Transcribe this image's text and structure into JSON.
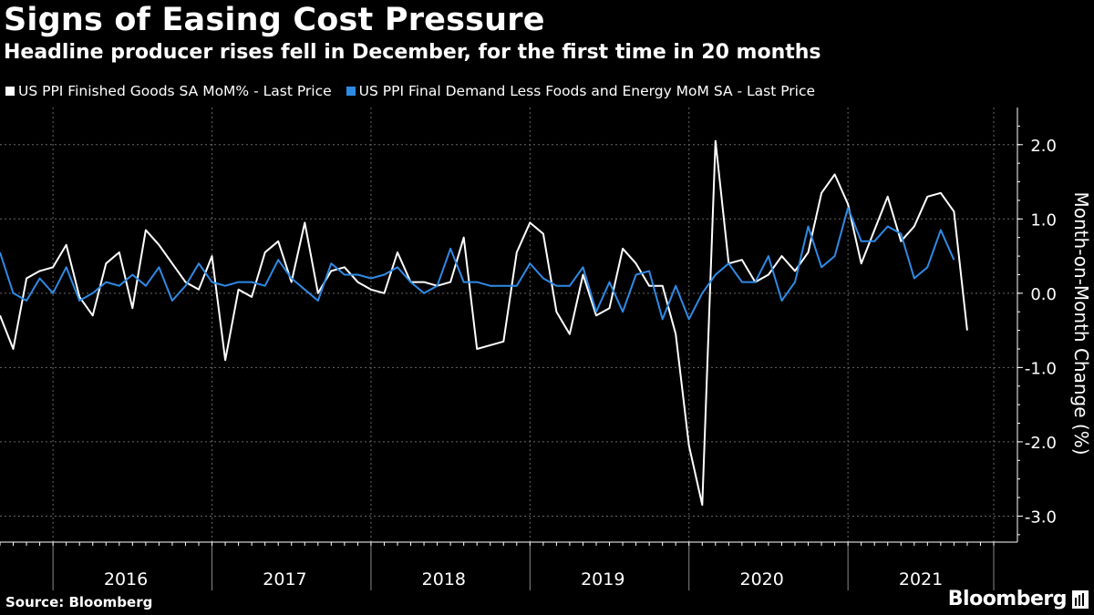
{
  "colors": {
    "background": "#000000",
    "series_white": "#ffffff",
    "series_blue": "#2f8ae5",
    "grid": "#666666"
  },
  "source_label": "Source: Bloomberg",
  "brand": "Bloomberg",
  "chart_data": {
    "type": "line",
    "title": "Signs of Easing Cost Pressure",
    "subtitle": "Headline producer rises fell in December, for the first time in 20 months",
    "ylabel": "Month-on-Month Change (%)",
    "xlabel": "",
    "ylim": [
      -3.35,
      2.5
    ],
    "yticks": [
      2.0,
      1.0,
      0.0,
      -1.0,
      -2.0,
      -3.0
    ],
    "ytick_labels": [
      "2.0",
      "1.0",
      "0.0",
      "-1.0",
      "-2.0",
      "-3.0"
    ],
    "y_axis_side": "right",
    "grid": true,
    "legend": "top-left",
    "x_start": "2015-09",
    "x_end": "2021-12",
    "year_labels": [
      "2016",
      "2017",
      "2018",
      "2019",
      "2020",
      "2021"
    ],
    "series": [
      {
        "name": "US PPI Finished Goods SA MoM% - Last Price",
        "color": "#ffffff",
        "values": [
          -0.3,
          -0.75,
          0.2,
          0.3,
          0.35,
          0.65,
          -0.05,
          -0.3,
          0.4,
          0.55,
          -0.2,
          0.85,
          0.65,
          0.4,
          0.15,
          0.05,
          0.5,
          -0.9,
          0.05,
          -0.05,
          0.55,
          0.7,
          0.15,
          0.95,
          0.0,
          0.3,
          0.35,
          0.15,
          0.05,
          0.0,
          0.55,
          0.15,
          0.15,
          0.1,
          0.15,
          0.75,
          -0.75,
          -0.7,
          -0.65,
          0.55,
          0.95,
          0.8,
          -0.25,
          -0.55,
          0.25,
          -0.3,
          -0.2,
          0.6,
          0.4,
          0.1,
          0.1,
          -0.55,
          -2.05,
          -2.85,
          2.05,
          0.4,
          0.45,
          0.15,
          0.25,
          0.5,
          0.3,
          0.55,
          1.35,
          1.6,
          1.2,
          0.4,
          0.85,
          1.3,
          0.7,
          0.9,
          1.3,
          1.35,
          1.1,
          -0.5
        ]
      },
      {
        "name": "US PPI Final Demand Less Foods and Energy MoM SA - Last Price",
        "color": "#2f8ae5",
        "values": [
          0.55,
          0.0,
          -0.1,
          0.2,
          0.0,
          0.35,
          -0.1,
          0.0,
          0.15,
          0.1,
          0.25,
          0.1,
          0.35,
          -0.1,
          0.1,
          0.4,
          0.15,
          0.1,
          0.15,
          0.15,
          0.1,
          0.45,
          0.2,
          0.05,
          -0.1,
          0.4,
          0.25,
          0.25,
          0.2,
          0.25,
          0.35,
          0.15,
          0.0,
          0.1,
          0.6,
          0.15,
          0.15,
          0.1,
          0.1,
          0.1,
          0.4,
          0.2,
          0.1,
          0.1,
          0.35,
          -0.25,
          0.15,
          -0.25,
          0.25,
          0.3,
          -0.35,
          0.1,
          -0.35,
          0.0,
          0.25,
          0.4,
          0.15,
          0.15,
          0.5,
          -0.1,
          0.15,
          0.9,
          0.35,
          0.5,
          1.15,
          0.7,
          0.7,
          0.9,
          0.8,
          0.2,
          0.35,
          0.85,
          0.45
        ]
      }
    ]
  }
}
